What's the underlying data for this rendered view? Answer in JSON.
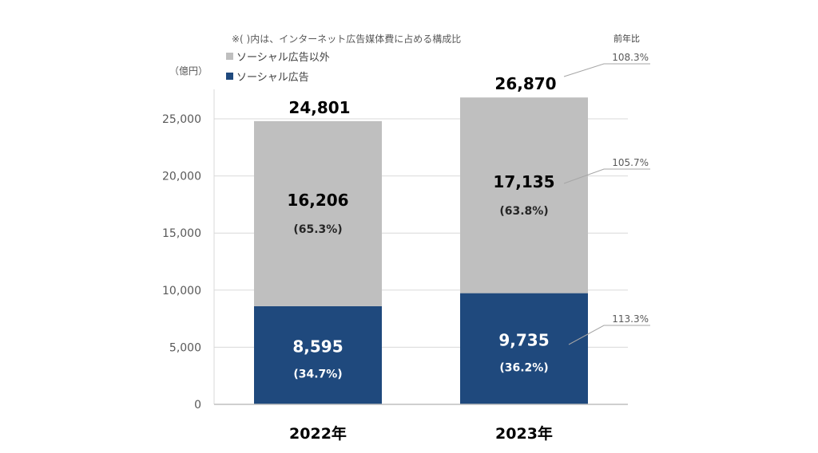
{
  "note": "※(   )内は、インターネット広告媒体費に占める構成比",
  "unit_label": "（億円）",
  "yoy_header": "前年比",
  "legend": {
    "other": "ソーシャル広告以外",
    "social": "ソーシャル広告"
  },
  "colors": {
    "social": "#1f497d",
    "other": "#bfbfbf",
    "grid": "#d9d9d9",
    "axis_text": "#595959",
    "total_text": "#000000",
    "yoy_text": "#595959",
    "connector": "#a6a6a6"
  },
  "chart_data": {
    "type": "bar",
    "stacked": true,
    "categories": [
      "2022年",
      "2023年"
    ],
    "series": [
      {
        "name": "ソーシャル広告",
        "key": "social",
        "values": [
          8595,
          9735
        ],
        "value_labels": [
          "8,595",
          "9,735"
        ],
        "share_labels": [
          "(34.7%)",
          "(36.2%)"
        ]
      },
      {
        "name": "ソーシャル広告以外",
        "key": "other",
        "values": [
          16206,
          17135
        ],
        "value_labels": [
          "16,206",
          "17,135"
        ],
        "share_labels": [
          "(65.3%)",
          "(63.8%)"
        ]
      }
    ],
    "totals": [
      24801,
      26870
    ],
    "total_labels": [
      "24,801",
      "26,870"
    ],
    "yoy": {
      "total": "108.3%",
      "other": "105.7%",
      "social": "113.3%"
    },
    "yticks": [
      0,
      5000,
      10000,
      15000,
      20000,
      25000
    ],
    "ytick_labels": [
      "0",
      "5,000",
      "10,000",
      "15,000",
      "20,000",
      "25,000"
    ],
    "ylim": [
      0,
      25000
    ],
    "grid": true,
    "legend_position": "top-left"
  }
}
